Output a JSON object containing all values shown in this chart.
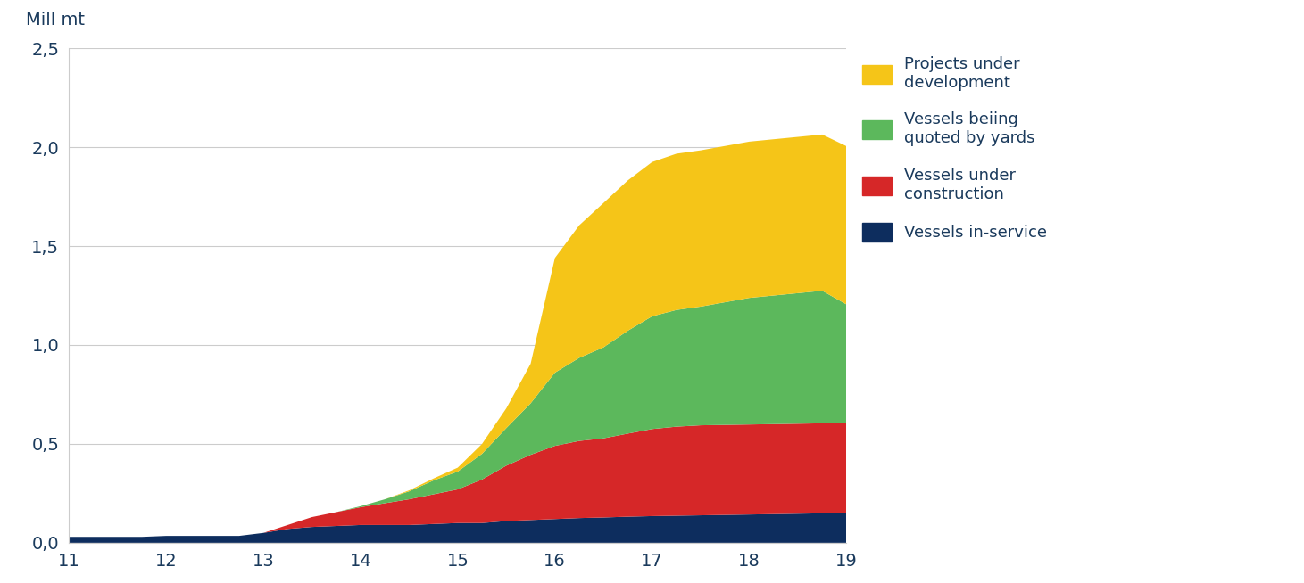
{
  "x": [
    11,
    11.25,
    11.5,
    11.75,
    12,
    12.25,
    12.5,
    12.75,
    13,
    13.25,
    13.5,
    13.75,
    14,
    14.25,
    14.5,
    14.75,
    15,
    15.25,
    15.5,
    15.75,
    16,
    16.25,
    16.5,
    16.75,
    17,
    17.25,
    17.5,
    17.75,
    18,
    18.25,
    18.5,
    18.75,
    19
  ],
  "vessels_in_service": [
    0.03,
    0.03,
    0.03,
    0.03,
    0.035,
    0.035,
    0.035,
    0.035,
    0.05,
    0.07,
    0.08,
    0.085,
    0.09,
    0.09,
    0.09,
    0.095,
    0.1,
    0.1,
    0.11,
    0.115,
    0.12,
    0.125,
    0.128,
    0.132,
    0.135,
    0.137,
    0.139,
    0.141,
    0.143,
    0.145,
    0.147,
    0.149,
    0.15
  ],
  "vessels_under_construction": [
    0.0,
    0.0,
    0.0,
    0.0,
    0.0,
    0.0,
    0.0,
    0.0,
    0.0,
    0.02,
    0.05,
    0.07,
    0.09,
    0.11,
    0.13,
    0.15,
    0.17,
    0.22,
    0.28,
    0.33,
    0.37,
    0.39,
    0.4,
    0.42,
    0.44,
    0.45,
    0.455,
    0.455,
    0.455,
    0.455,
    0.455,
    0.455,
    0.455
  ],
  "vessels_quoted": [
    0.0,
    0.0,
    0.0,
    0.0,
    0.0,
    0.0,
    0.0,
    0.0,
    0.0,
    0.0,
    0.0,
    0.0,
    0.005,
    0.02,
    0.04,
    0.07,
    0.09,
    0.13,
    0.19,
    0.26,
    0.37,
    0.42,
    0.46,
    0.52,
    0.57,
    0.59,
    0.6,
    0.62,
    0.64,
    0.65,
    0.66,
    0.67,
    0.6
  ],
  "projects_under_development": [
    0.0,
    0.0,
    0.0,
    0.0,
    0.0,
    0.0,
    0.0,
    0.0,
    0.0,
    0.0,
    0.0,
    0.0,
    0.0,
    0.0,
    0.005,
    0.01,
    0.02,
    0.05,
    0.1,
    0.2,
    0.58,
    0.67,
    0.73,
    0.76,
    0.78,
    0.79,
    0.79,
    0.79,
    0.79,
    0.79,
    0.79,
    0.79,
    0.8
  ],
  "color_in_service": "#0d2d5e",
  "color_construction": "#d62728",
  "color_quoted": "#5cb85c",
  "color_development": "#f5c518",
  "ylabel": "Mill mt",
  "ylim": [
    0,
    2.5
  ],
  "yticks": [
    0.0,
    0.5,
    1.0,
    1.5,
    2.0,
    2.5
  ],
  "ytick_labels": [
    "0,0",
    "0,5",
    "1,0",
    "1,5",
    "2,0",
    "2,5"
  ],
  "xlim": [
    11,
    19
  ],
  "xticks": [
    11,
    12,
    13,
    14,
    15,
    16,
    17,
    18,
    19
  ],
  "legend_labels": [
    "Projects under\ndevelopment",
    "Vessels beiing\nquoted by yards",
    "Vessels under\nconstruction",
    "Vessels in-service"
  ],
  "legend_colors": [
    "#f5c518",
    "#5cb85c",
    "#d62728",
    "#0d2d5e"
  ],
  "text_color": "#1a3a5c",
  "background_color": "#ffffff",
  "grid_color": "#cccccc"
}
